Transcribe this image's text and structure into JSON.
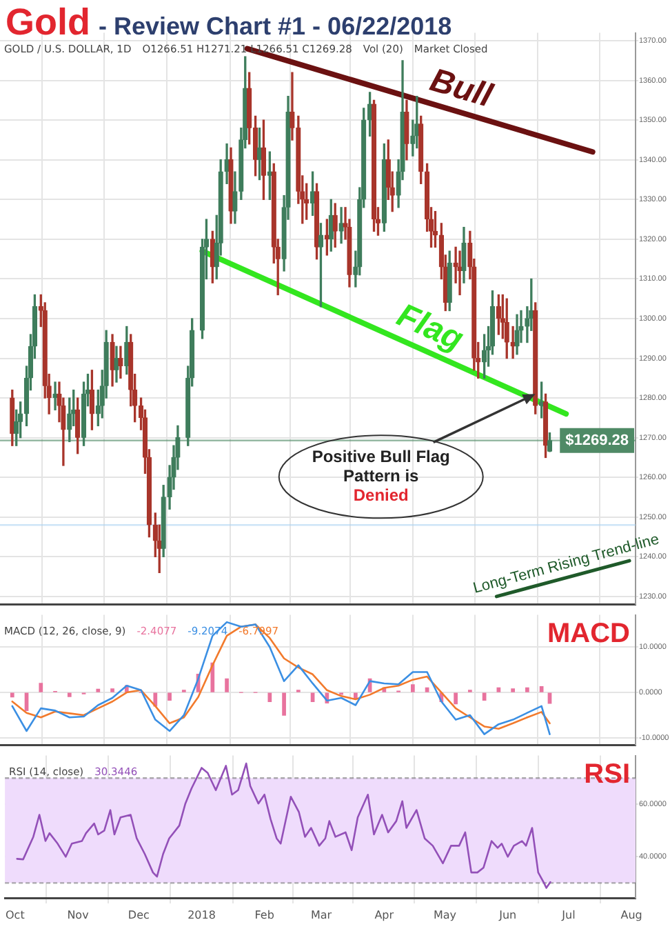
{
  "chart_data": [
    {
      "type": "candlestick",
      "title": "Gold",
      "subtitle": "- Review Chart #1 - 06/22/2018",
      "annotations": [
        {
          "text": "Positive Bull Flag Pattern is",
          "x": "2018-06-15",
          "y": 1281
        },
        "Denied",
        "GOLD / U.S. DOLLAR, 1D",
        "O1266.51 H1271.21 L1266.51 C1269.28",
        "Vol (20)",
        "Market Closed"
      ],
      "xlim": [
        "2017-09-26",
        "2018-08-03"
      ],
      "xticks": [
        {
          "value": "2017-10-01",
          "label": null
        },
        {
          "value": "2017-11-01",
          "label": null
        },
        {
          "value": "2017-12-01",
          "label": null
        },
        {
          "value": "2018-01-01",
          "label": null
        },
        {
          "value": "2018-02-01",
          "label": null
        },
        {
          "value": "2018-03-01",
          "label": null
        },
        {
          "value": "2018-04-01",
          "label": null
        },
        {
          "value": "2018-05-01",
          "label": null
        },
        {
          "value": "2018-06-01",
          "label": null
        },
        {
          "value": "2018-07-01",
          "label": null
        },
        {
          "value": "2018-08-01",
          "label": null
        }
      ],
      "ylim": [
        1228,
        1372
      ],
      "yticks": [
        {
          "value": 1230,
          "label": "1230.00"
        },
        {
          "value": 1240,
          "label": "1240.00"
        },
        {
          "value": 1250,
          "label": "1250.00"
        },
        {
          "value": 1260,
          "label": "1260.00"
        },
        {
          "value": 1270,
          "label": "1270.00"
        },
        {
          "value": 1280,
          "label": "1280.00"
        },
        {
          "value": 1290,
          "label": "1290.00"
        },
        {
          "value": 1300,
          "label": "1300.00"
        },
        {
          "value": 1310,
          "label": "1310.00"
        },
        {
          "value": 1320,
          "label": "1320.00"
        },
        {
          "value": 1330,
          "label": "1330.00"
        },
        {
          "value": 1340,
          "label": "1340.00"
        },
        {
          "value": 1350,
          "label": "1350.00"
        },
        {
          "value": 1360,
          "label": "1360.00"
        },
        {
          "value": 1370,
          "label": "1370.00"
        }
      ],
      "tick_labels": "y",
      "grid": true,
      "legend": false,
      "ref_lines": [
        {
          "axis": "y",
          "value": 1269.28,
          "label": "$1269.28",
          "color": "#4f8a66"
        },
        {
          "axis": "y",
          "value": 1248,
          "color": "#aed4f2"
        }
      ],
      "series": [
        {
          "colors": [
            "#a8352b",
            "#3f7d5c",
            "#3f7d5c",
            "#3f7d5c",
            "#3f7d5c",
            "#3f7d5c",
            "#a8352b",
            "#a8352b",
            "#a8352b",
            "#3f7d5c",
            "#a8352b",
            "#a8352b",
            "#3f7d5c",
            "#3f7d5c",
            "#a8352b",
            "#3f7d5c",
            "#3f7d5c",
            "#a8352b",
            "#3f7d5c",
            "#3f7d5c",
            "#3f7d5c",
            "#a8352b",
            "#3f7d5c",
            "#a8352b",
            "#3f7d5c",
            "#a8352b",
            "#a8352b",
            "#a8352b",
            "#a8352b",
            "#a8352b",
            "#a8352b",
            "#a8352b",
            "#3f7d5c",
            "#3f7d5c",
            "#3f7d5c",
            "#3f7d5c",
            "#3f7d5c",
            "#3f7d5c",
            "#3f7d5c",
            "#3f7d5c",
            "#a8352b",
            "#3f7d5c",
            "#3f7d5c",
            "#3f7d5c",
            "#a8352b",
            "#3f7d5c",
            "#3f7d5c",
            "#3f7d5c",
            "#a8352b",
            "#a8352b",
            "#3f7d5c",
            "#a8352b",
            "#3f7d5c",
            "#a8352b",
            "#a8352b",
            "#3f7d5c",
            "#3f7d5c",
            "#a8352b",
            "#a8352b",
            "#a8352b",
            "#a8352b",
            "#3f7d5c",
            "#a8352b",
            "#3f7d5c",
            "#a8352b",
            "#3f7d5c",
            "#a8352b",
            "#3f7d5c",
            "#a8352b",
            "#a8352b",
            "#3f7d5c",
            "#3f7d5c",
            "#3f7d5c",
            "#3f7d5c",
            "#a8352b",
            "#a8352b",
            "#3f7d5c",
            "#a8352b",
            "#a8352b",
            "#3f7d5c",
            "#3f7d5c",
            "#a8352b",
            "#3f7d5c",
            "#3f7d5c",
            "#a8352b",
            "#a8352b",
            "#a8352b",
            "#a8352b",
            "#a8352b",
            "#a8352b",
            "#3f7d5c",
            "#a8352b",
            "#a8352b",
            "#3f7d5c",
            "#a8352b",
            "#a8352b",
            "#a8352b",
            "#3f7d5c",
            "#3f7d5c",
            "#3f7d5c",
            "#a8352b",
            "#a8352b",
            "#a8352b",
            "#a8352b",
            "#3f7d5c",
            "#3f7d5c",
            "#3f7d5c",
            "#3f7d5c",
            "#a8352b",
            "#3f7d5c",
            "#a8352b",
            "#3f7d5c"
          ],
          "x": [
            "2017-10-02",
            "2017-10-04",
            "2017-10-06",
            "2017-10-09",
            "2017-10-11",
            "2017-10-13",
            "2017-10-16",
            "2017-10-18",
            "2017-10-20",
            "2017-10-23",
            "2017-10-25",
            "2017-10-27",
            "2017-10-30",
            "2017-11-01",
            "2017-11-03",
            "2017-11-06",
            "2017-11-08",
            "2017-11-10",
            "2017-11-13",
            "2017-11-15",
            "2017-11-17",
            "2017-11-20",
            "2017-11-22",
            "2017-11-24",
            "2017-11-27",
            "2017-11-29",
            "2017-12-01",
            "2017-12-04",
            "2017-12-06",
            "2017-12-08",
            "2017-12-11",
            "2017-12-13",
            "2017-12-15",
            "2017-12-18",
            "2017-12-20",
            "2017-12-22",
            "2017-12-27",
            "2017-12-29",
            "2018-01-03",
            "2018-01-05",
            "2018-01-08",
            "2018-01-10",
            "2018-01-12",
            "2018-01-15",
            "2018-01-17",
            "2018-01-19",
            "2018-01-22",
            "2018-01-24",
            "2018-01-26",
            "2018-01-29",
            "2018-01-31",
            "2018-02-02",
            "2018-02-05",
            "2018-02-07",
            "2018-02-09",
            "2018-02-12",
            "2018-02-14",
            "2018-02-16",
            "2018-02-19",
            "2018-02-21",
            "2018-02-23",
            "2018-02-26",
            "2018-02-28",
            "2018-03-02",
            "2018-03-05",
            "2018-03-07",
            "2018-03-09",
            "2018-03-12",
            "2018-03-14",
            "2018-03-16",
            "2018-03-19",
            "2018-03-21",
            "2018-03-23",
            "2018-03-26",
            "2018-03-28",
            "2018-03-30",
            "2018-04-02",
            "2018-04-04",
            "2018-04-06",
            "2018-04-09",
            "2018-04-11",
            "2018-04-13",
            "2018-04-16",
            "2018-04-18",
            "2018-04-20",
            "2018-04-23",
            "2018-04-25",
            "2018-04-27",
            "2018-04-30",
            "2018-05-02",
            "2018-05-04",
            "2018-05-07",
            "2018-05-09",
            "2018-05-11",
            "2018-05-14",
            "2018-05-16",
            "2018-05-18",
            "2018-05-21",
            "2018-05-23",
            "2018-05-25",
            "2018-05-28",
            "2018-05-30",
            "2018-06-01",
            "2018-06-04",
            "2018-06-06",
            "2018-06-08",
            "2018-06-11",
            "2018-06-13",
            "2018-06-15",
            "2018-06-18",
            "2018-06-20",
            "2018-06-22"
          ],
          "ohlc": [
            [
              1280,
              1282,
              1268,
              1271
            ],
            [
              1271,
              1277,
              1268,
              1274
            ],
            [
              1274,
              1279,
              1270,
              1276
            ],
            [
              1276,
              1288,
              1273,
              1285
            ],
            [
              1285,
              1296,
              1282,
              1293
            ],
            [
              1293,
              1306,
              1290,
              1303
            ],
            [
              1303,
              1306,
              1298,
              1302
            ],
            [
              1302,
              1304,
              1280,
              1283
            ],
            [
              1283,
              1286,
              1276,
              1280
            ],
            [
              1280,
              1284,
              1277,
              1281
            ],
            [
              1281,
              1284,
              1274,
              1278
            ],
            [
              1278,
              1280,
              1263,
              1272
            ],
            [
              1272,
              1280,
              1269,
              1276
            ],
            [
              1276,
              1282,
              1273,
              1277
            ],
            [
              1277,
              1280,
              1266,
              1270
            ],
            [
              1270,
              1284,
              1268,
              1281
            ],
            [
              1281,
              1286,
              1278,
              1282
            ],
            [
              1282,
              1287,
              1272,
              1276
            ],
            [
              1276,
              1282,
              1273,
              1278
            ],
            [
              1278,
              1287,
              1275,
              1283
            ],
            [
              1283,
              1297,
              1280,
              1294
            ],
            [
              1294,
              1296,
              1283,
              1287
            ],
            [
              1287,
              1293,
              1284,
              1290
            ],
            [
              1290,
              1293,
              1285,
              1288
            ],
            [
              1288,
              1298,
              1286,
              1294
            ],
            [
              1294,
              1296,
              1278,
              1282
            ],
            [
              1282,
              1286,
              1274,
              1278
            ],
            [
              1278,
              1280,
              1272,
              1275
            ],
            [
              1275,
              1277,
              1261,
              1265
            ],
            [
              1265,
              1267,
              1245,
              1248
            ],
            [
              1248,
              1251,
              1240,
              1244
            ],
            [
              1244,
              1248,
              1236,
              1242
            ],
            [
              1242,
              1258,
              1240,
              1255
            ],
            [
              1255,
              1263,
              1252,
              1260
            ],
            [
              1260,
              1268,
              1257,
              1265
            ],
            [
              1265,
              1273,
              1262,
              1270
            ],
            [
              1270,
              1288,
              1268,
              1285
            ],
            [
              1285,
              1300,
              1283,
              1297
            ],
            [
              1297,
              1320,
              1295,
              1318
            ],
            [
              1318,
              1325,
              1310,
              1320
            ],
            [
              1320,
              1322,
              1309,
              1313
            ],
            [
              1313,
              1326,
              1310,
              1319
            ],
            [
              1319,
              1340,
              1316,
              1337
            ],
            [
              1337,
              1344,
              1334,
              1340
            ],
            [
              1340,
              1343,
              1324,
              1327
            ],
            [
              1327,
              1337,
              1324,
              1332
            ],
            [
              1332,
              1348,
              1330,
              1345
            ],
            [
              1345,
              1366,
              1343,
              1358
            ],
            [
              1358,
              1362,
              1344,
              1348
            ],
            [
              1348,
              1351,
              1336,
              1340
            ],
            [
              1340,
              1348,
              1335,
              1343
            ],
            [
              1343,
              1350,
              1330,
              1336
            ],
            [
              1336,
              1342,
              1330,
              1337
            ],
            [
              1337,
              1339,
              1314,
              1318
            ],
            [
              1318,
              1320,
              1306,
              1315
            ],
            [
              1315,
              1331,
              1312,
              1328
            ],
            [
              1328,
              1356,
              1325,
              1352
            ],
            [
              1352,
              1362,
              1345,
              1348
            ],
            [
              1348,
              1351,
              1329,
              1332
            ],
            [
              1332,
              1336,
              1324,
              1330
            ],
            [
              1330,
              1334,
              1325,
              1329
            ],
            [
              1329,
              1337,
              1326,
              1332
            ],
            [
              1332,
              1334,
              1315,
              1318
            ],
            [
              1318,
              1324,
              1303,
              1321
            ],
            [
              1321,
              1325,
              1316,
              1320
            ],
            [
              1320,
              1330,
              1317,
              1326
            ],
            [
              1326,
              1329,
              1318,
              1322
            ],
            [
              1322,
              1328,
              1319,
              1324
            ],
            [
              1324,
              1328,
              1320,
              1323
            ],
            [
              1323,
              1325,
              1308,
              1311
            ],
            [
              1311,
              1317,
              1308,
              1313
            ],
            [
              1313,
              1333,
              1311,
              1330
            ],
            [
              1330,
              1353,
              1328,
              1350
            ],
            [
              1350,
              1357,
              1346,
              1354
            ],
            [
              1354,
              1355,
              1322,
              1325
            ],
            [
              1325,
              1328,
              1321,
              1324
            ],
            [
              1324,
              1344,
              1322,
              1340
            ],
            [
              1340,
              1345,
              1330,
              1333
            ],
            [
              1333,
              1337,
              1327,
              1331
            ],
            [
              1331,
              1340,
              1328,
              1337
            ],
            [
              1337,
              1365,
              1335,
              1352
            ],
            [
              1352,
              1355,
              1340,
              1344
            ],
            [
              1344,
              1350,
              1341,
              1346
            ],
            [
              1346,
              1356,
              1343,
              1349
            ],
            [
              1349,
              1351,
              1334,
              1337
            ],
            [
              1337,
              1339,
              1322,
              1325
            ],
            [
              1325,
              1328,
              1318,
              1322
            ],
            [
              1322,
              1327,
              1318,
              1321
            ],
            [
              1321,
              1324,
              1310,
              1313
            ],
            [
              1313,
              1316,
              1302,
              1304
            ],
            [
              1304,
              1317,
              1302,
              1314
            ],
            [
              1314,
              1318,
              1309,
              1313
            ],
            [
              1313,
              1317,
              1306,
              1312
            ],
            [
              1312,
              1323,
              1309,
              1319
            ],
            [
              1319,
              1322,
              1310,
              1313
            ],
            [
              1313,
              1315,
              1287,
              1290
            ],
            [
              1290,
              1294,
              1285,
              1289
            ],
            [
              1289,
              1296,
              1285,
              1292
            ],
            [
              1292,
              1298,
              1288,
              1293
            ],
            [
              1293,
              1307,
              1291,
              1303
            ],
            [
              1303,
              1306,
              1296,
              1300
            ],
            [
              1300,
              1306,
              1295,
              1299
            ],
            [
              1299,
              1305,
              1290,
              1294
            ],
            [
              1294,
              1298,
              1290,
              1293
            ],
            [
              1293,
              1301,
              1291,
              1297
            ],
            [
              1297,
              1302,
              1294,
              1298
            ],
            [
              1298,
              1303,
              1294,
              1300
            ],
            [
              1300,
              1310,
              1297,
              1302
            ],
            [
              1302,
              1304,
              1276,
              1278
            ],
            [
              1278,
              1284,
              1275,
              1279
            ],
            [
              1279,
              1281,
              1265,
              1268
            ],
            [
              1266.51,
              1271.21,
              1266.51,
              1269.28
            ]
          ]
        },
        {
          "type": "line",
          "name": "Bull",
          "color": "#6b1111",
          "x": [
            "2018-01-25",
            "2018-07-13"
          ],
          "values": [
            1368,
            1342
          ]
        },
        {
          "type": "line",
          "name": "Flag",
          "color": "#33e61f",
          "x": [
            "2018-01-03",
            "2018-06-30"
          ],
          "values": [
            1317,
            1276
          ]
        },
        {
          "type": "line",
          "name": "Long-Term Rising Trend-line",
          "color": "#1f5a2a",
          "x": [
            "2018-05-27",
            "2018-07-31"
          ],
          "values": [
            1230,
            1239
          ]
        }
      ]
    },
    {
      "type": "line",
      "title": "MACD",
      "annotations": [
        "MACD (12, 26, close, 9)",
        "-2.4077",
        "-9.2074",
        "-6.7997"
      ],
      "xlim": [
        "2017-09-26",
        "2018-08-03"
      ],
      "xticks": [
        {
          "value": "2017-10-01",
          "label": null
        },
        {
          "value": "2017-11-01",
          "label": null
        },
        {
          "value": "2017-12-01",
          "label": null
        },
        {
          "value": "2018-01-01",
          "label": null
        },
        {
          "value": "2018-02-01",
          "label": null
        },
        {
          "value": "2018-03-01",
          "label": null
        },
        {
          "value": "2018-04-01",
          "label": null
        },
        {
          "value": "2018-05-01",
          "label": null
        },
        {
          "value": "2018-06-01",
          "label": null
        },
        {
          "value": "2018-07-01",
          "label": null
        },
        {
          "value": "2018-08-01",
          "label": null
        }
      ],
      "ylim": [
        -11.6,
        17.1
      ],
      "yticks": [
        {
          "value": -10,
          "label": "-10.0000"
        },
        {
          "value": 0,
          "label": "0.0000"
        },
        {
          "value": 10,
          "label": "10.0000"
        }
      ],
      "tick_labels": "y",
      "grid": true,
      "legend": false,
      "x": [
        "2017-10-02",
        "2017-10-09",
        "2017-10-16",
        "2017-10-23",
        "2017-10-30",
        "2017-11-06",
        "2017-11-13",
        "2017-11-20",
        "2017-11-27",
        "2017-12-04",
        "2017-12-11",
        "2017-12-18",
        "2017-12-25",
        "2018-01-01",
        "2018-01-08",
        "2018-01-15",
        "2018-01-22",
        "2018-01-29",
        "2018-02-05",
        "2018-02-12",
        "2018-02-19",
        "2018-02-26",
        "2018-03-05",
        "2018-03-12",
        "2018-03-19",
        "2018-03-26",
        "2018-04-02",
        "2018-04-09",
        "2018-04-16",
        "2018-04-23",
        "2018-04-30",
        "2018-05-07",
        "2018-05-14",
        "2018-05-21",
        "2018-05-28",
        "2018-06-04",
        "2018-06-11",
        "2018-06-18",
        "2018-06-22"
      ],
      "series": [
        {
          "type": "bar",
          "color": "#e8739e",
          "values": [
            -1,
            -4,
            2,
            0.2,
            -0.9,
            -0.3,
            0.7,
            0.8,
            1.5,
            0,
            -3,
            -1.7,
            0.5,
            4,
            6.5,
            3,
            0,
            0,
            -2,
            -5,
            0.5,
            -2,
            -2.3,
            -0.4,
            -1.3,
            3,
            1,
            0.3,
            1.7,
            1,
            -2,
            -2.5,
            0.5,
            -1.7,
            1,
            0.8,
            1,
            1.3,
            -2.4077
          ]
        },
        {
          "color": "#3b8fe3",
          "values": [
            -3,
            -8.5,
            -3.5,
            -4,
            -5.5,
            -5.3,
            -2.8,
            -1.2,
            1.5,
            0.5,
            -6,
            -8.5,
            -5,
            3,
            12.5,
            15.5,
            14.5,
            15,
            10,
            2.5,
            6,
            2,
            -1.8,
            -1.2,
            -2.8,
            2.5,
            2,
            1.8,
            4.5,
            4.5,
            -2,
            -6,
            -5,
            -9.2,
            -7,
            -6,
            -4.5,
            -3,
            -9.2074
          ]
        },
        {
          "color": "#f27a2c",
          "values": [
            -2,
            -4.5,
            -5.5,
            -4.2,
            -4.6,
            -5,
            -3.5,
            -2,
            0,
            0.5,
            -3,
            -6.8,
            -5.5,
            -1,
            6,
            12.5,
            14.5,
            15,
            12,
            7.5,
            5.5,
            4,
            0.5,
            -0.8,
            -1.5,
            -0.5,
            1,
            1.5,
            2.8,
            3.5,
            0,
            -3.5,
            -5.5,
            -7.5,
            -8,
            -6.8,
            -5.5,
            -4.3,
            -6.7997
          ]
        }
      ]
    },
    {
      "type": "line",
      "title": "RSI",
      "annotations": [
        "RSI (14, close)",
        "30.3446"
      ],
      "xlim": [
        "2017-09-26",
        "2018-08-03"
      ],
      "xticks": [
        {
          "value": "2017-10-01",
          "label": "Oct"
        },
        {
          "value": "2017-11-01",
          "label": "Nov"
        },
        {
          "value": "2017-12-01",
          "label": "Dec"
        },
        {
          "value": "2018-01-01",
          "label": "2018"
        },
        {
          "value": "2018-02-01",
          "label": "Feb"
        },
        {
          "value": "2018-03-01",
          "label": "Mar"
        },
        {
          "value": "2018-04-01",
          "label": "Apr"
        },
        {
          "value": "2018-05-01",
          "label": "May"
        },
        {
          "value": "2018-06-01",
          "label": "Jun"
        },
        {
          "value": "2018-07-01",
          "label": "Jul"
        },
        {
          "value": "2018-08-01",
          "label": "Aug"
        }
      ],
      "ylim": [
        24.3,
        78.6
      ],
      "yticks": [
        {
          "value": 40,
          "label": "40.0000"
        },
        {
          "value": 60,
          "label": "60.0000"
        }
      ],
      "grid": true,
      "legend": false,
      "bands": [
        {
          "axis": "y",
          "from": 30,
          "to": 70,
          "color": "#efdcfc"
        }
      ],
      "ref_lines": [
        {
          "axis": "y",
          "value": 70,
          "color": "#777777",
          "line_style": "dashed"
        },
        {
          "axis": "y",
          "value": 30,
          "color": "#777777",
          "line_style": "dashed"
        }
      ],
      "series": [
        {
          "color": "#9350b8",
          "x": [
            "2017-10-02",
            "2017-10-05",
            "2017-10-10",
            "2017-10-13",
            "2017-10-16",
            "2017-10-18",
            "2017-10-22",
            "2017-10-26",
            "2017-10-29",
            "2017-11-03",
            "2017-11-05",
            "2017-11-09",
            "2017-11-11",
            "2017-11-14",
            "2017-11-17",
            "2017-11-19",
            "2017-11-22",
            "2017-11-27",
            "2017-11-30",
            "2017-12-04",
            "2017-12-08",
            "2017-12-10",
            "2017-12-13",
            "2017-12-16",
            "2017-12-21",
            "2017-12-24",
            "2017-12-27",
            "2018-01-01",
            "2018-01-04",
            "2018-01-08",
            "2018-01-13",
            "2018-01-16",
            "2018-01-19",
            "2018-01-23",
            "2018-01-25",
            "2018-01-29",
            "2018-02-01",
            "2018-02-04",
            "2018-02-07",
            "2018-02-09",
            "2018-02-14",
            "2018-02-18",
            "2018-02-21",
            "2018-02-24",
            "2018-02-28",
            "2018-03-03",
            "2018-03-05",
            "2018-03-08",
            "2018-03-13",
            "2018-03-16",
            "2018-03-19",
            "2018-03-24",
            "2018-03-27",
            "2018-03-31",
            "2018-04-03",
            "2018-04-07",
            "2018-04-10",
            "2018-04-12",
            "2018-04-17",
            "2018-04-21",
            "2018-04-25",
            "2018-04-30",
            "2018-05-04",
            "2018-05-08",
            "2018-05-11",
            "2018-05-14",
            "2018-05-17",
            "2018-05-20",
            "2018-05-24",
            "2018-05-27",
            "2018-05-29",
            "2018-06-01",
            "2018-06-04",
            "2018-06-08",
            "2018-06-10",
            "2018-06-13",
            "2018-06-16",
            "2018-06-19",
            "2018-06-20",
            "2018-06-22"
          ],
          "values": [
            39.2,
            39,
            47.6,
            56,
            46,
            49,
            45,
            40,
            45,
            46,
            49,
            52.7,
            48.5,
            50,
            57.8,
            48.5,
            55,
            56,
            47,
            41,
            34,
            32.4,
            41,
            47,
            51.9,
            60.3,
            66,
            73.9,
            72,
            65.4,
            74.7,
            63.7,
            65.4,
            75.6,
            67,
            60.3,
            63.7,
            54.4,
            47,
            45,
            62.9,
            57,
            47.6,
            51,
            44.2,
            47,
            53.6,
            47.6,
            49.3,
            42.5,
            55,
            63.7,
            48.5,
            56,
            49.3,
            53.6,
            61.2,
            51,
            57.8,
            47,
            44.2,
            37.5,
            44.2,
            44.2,
            49.3,
            34,
            34,
            35.8,
            46,
            43.4,
            45,
            40,
            44.2,
            46,
            44.2,
            51,
            34,
            29.8,
            28.1,
            30.3446
          ]
        }
      ]
    }
  ]
}
